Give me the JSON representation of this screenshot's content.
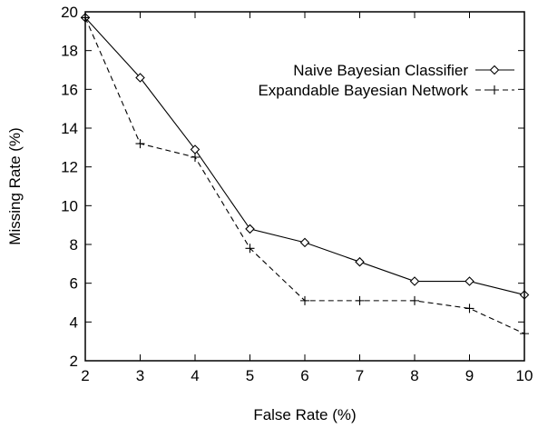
{
  "chart_data": {
    "type": "line",
    "title": "",
    "xlabel": "False Rate (%)",
    "ylabel": "Missing Rate (%)",
    "xlim": [
      2,
      10
    ],
    "ylim": [
      2,
      20
    ],
    "xticks": [
      2,
      3,
      4,
      5,
      6,
      7,
      8,
      9,
      10
    ],
    "yticks": [
      2,
      4,
      6,
      8,
      10,
      12,
      14,
      16,
      18,
      20
    ],
    "grid": false,
    "legend_position": "top-right",
    "series": [
      {
        "name": "Naive Bayesian Classifier",
        "marker": "diamond",
        "line": "solid",
        "color": "#000000",
        "x": [
          2,
          3,
          4,
          5,
          6,
          7,
          8,
          9,
          10
        ],
        "y": [
          19.7,
          16.6,
          12.9,
          8.8,
          8.1,
          7.1,
          6.1,
          6.1,
          5.4
        ]
      },
      {
        "name": "Expandable Bayesian Network",
        "marker": "plus",
        "line": "dashed",
        "color": "#000000",
        "x": [
          2,
          3,
          4,
          5,
          6,
          7,
          8,
          9,
          10
        ],
        "y": [
          19.7,
          13.2,
          12.5,
          7.8,
          5.1,
          5.1,
          5.1,
          4.7,
          3.4
        ]
      }
    ]
  }
}
